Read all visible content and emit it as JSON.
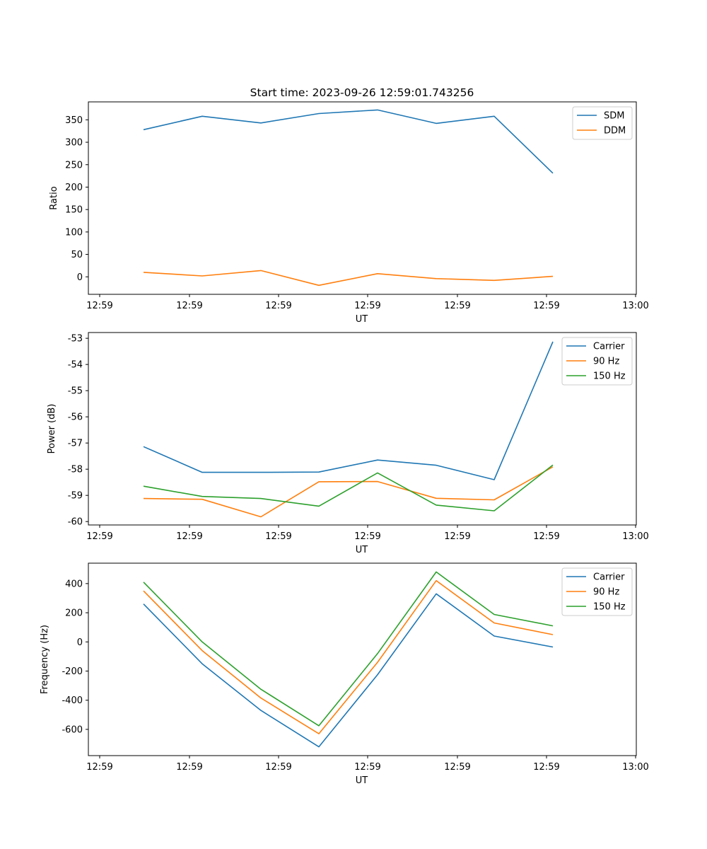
{
  "title": "Start time: 2023-09-26 12:59:01.743256",
  "chart_data": [
    {
      "type": "line",
      "xlabel": "UT",
      "ylabel": "Ratio",
      "x_tick_labels": [
        "12:59",
        "12:59",
        "12:59",
        "12:59",
        "12:59",
        "12:59",
        "12:59"
      ],
      "x_end_label": "13:00",
      "yticks": [
        0,
        50,
        100,
        150,
        200,
        250,
        300,
        350
      ],
      "ylim": [
        -39,
        390
      ],
      "legend": "top-right",
      "series": [
        {
          "name": "SDM",
          "color": "#1f77b4",
          "values": [
            328,
            358,
            343,
            364,
            372,
            342,
            358,
            231
          ]
        },
        {
          "name": "DDM",
          "color": "#ff7f0e",
          "values": [
            10,
            2,
            14,
            -19,
            7,
            -4,
            -8,
            1
          ]
        }
      ]
    },
    {
      "type": "line",
      "xlabel": "UT",
      "ylabel": "Power (dB)",
      "x_tick_labels": [
        "12:59",
        "12:59",
        "12:59",
        "12:59",
        "12:59",
        "12:59",
        "12:59"
      ],
      "x_end_label": "13:00",
      "yticks": [
        -60,
        -59,
        -58,
        -57,
        -56,
        -55,
        -54,
        -53
      ],
      "ylim": [
        -60.13,
        -52.78
      ],
      "legend": "top-right",
      "series": [
        {
          "name": "Carrier",
          "color": "#1f77b4",
          "values": [
            -57.14,
            -58.12,
            -58.12,
            -58.11,
            -57.65,
            -57.85,
            -58.4,
            -53.13
          ]
        },
        {
          "name": "90 Hz",
          "color": "#ff7f0e",
          "values": [
            -59.12,
            -59.15,
            -59.82,
            -58.48,
            -58.47,
            -59.11,
            -59.17,
            -57.91
          ]
        },
        {
          "name": "150 Hz",
          "color": "#2ca02c",
          "values": [
            -58.65,
            -59.04,
            -59.12,
            -59.41,
            -58.14,
            -59.37,
            -59.59,
            -57.84
          ]
        }
      ]
    },
    {
      "type": "line",
      "xlabel": "UT",
      "ylabel": "Frequency (Hz)",
      "x_tick_labels": [
        "12:59",
        "12:59",
        "12:59",
        "12:59",
        "12:59",
        "12:59",
        "12:59"
      ],
      "x_end_label": "13:00",
      "yticks": [
        -600,
        -400,
        -200,
        0,
        200,
        400
      ],
      "ylim": [
        -780,
        540
      ],
      "legend": "top-right",
      "series": [
        {
          "name": "Carrier",
          "color": "#1f77b4",
          "values": [
            260,
            -150,
            -470,
            -720,
            -225,
            330,
            40,
            -35
          ]
        },
        {
          "name": "90 Hz",
          "color": "#ff7f0e",
          "values": [
            350,
            -60,
            -385,
            -630,
            -140,
            420,
            130,
            50
          ]
        },
        {
          "name": "150 Hz",
          "color": "#2ca02c",
          "values": [
            410,
            0,
            -325,
            -575,
            -80,
            480,
            188,
            110
          ]
        }
      ]
    }
  ]
}
